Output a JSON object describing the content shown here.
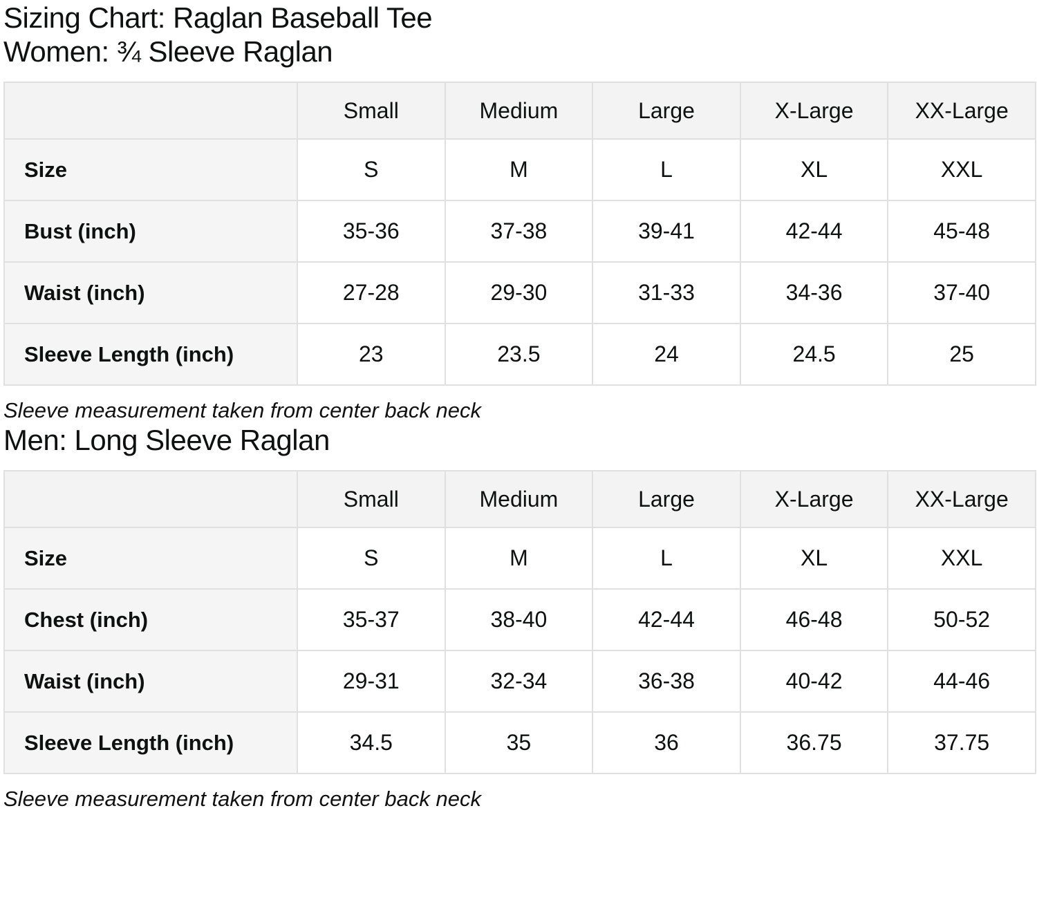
{
  "title": "Sizing Chart: Raglan Baseball Tee",
  "women": {
    "heading": "Women: ¾ Sleeve Raglan",
    "note": "Sleeve measurement taken from center back neck",
    "table": {
      "headers": [
        "",
        "Small",
        "Medium",
        "Large",
        "X-Large",
        "XX-Large"
      ],
      "rows": [
        {
          "label": "Size",
          "values": [
            "S",
            "M",
            "L",
            "XL",
            "XXL"
          ]
        },
        {
          "label": "Bust (inch)",
          "values": [
            "35-36",
            "37-38",
            "39-41",
            "42-44",
            "45-48"
          ]
        },
        {
          "label": "Waist (inch)",
          "values": [
            "27-28",
            "29-30",
            "31-33",
            "34-36",
            "37-40"
          ]
        },
        {
          "label": "Sleeve Length (inch)",
          "values": [
            "23",
            "23.5",
            "24",
            "24.5",
            "25"
          ]
        }
      ]
    }
  },
  "men": {
    "heading": "Men: Long Sleeve Raglan",
    "note": "Sleeve measurement taken from center back neck",
    "table": {
      "headers": [
        "",
        "Small",
        "Medium",
        "Large",
        "X-Large",
        "XX-Large"
      ],
      "rows": [
        {
          "label": "Size",
          "values": [
            "S",
            "M",
            "L",
            "XL",
            "XXL"
          ]
        },
        {
          "label": "Chest (inch)",
          "values": [
            "35-37",
            "38-40",
            "42-44",
            "46-48",
            "50-52"
          ]
        },
        {
          "label": "Waist (inch)",
          "values": [
            "29-31",
            "32-34",
            "36-38",
            "40-42",
            "44-46"
          ]
        },
        {
          "label": "Sleeve Length (inch)",
          "values": [
            "34.5",
            "35",
            "36",
            "36.75",
            "37.75"
          ]
        }
      ]
    }
  },
  "colors": {
    "text": "#0f1111",
    "header_cell_bg": "#f3f3f3",
    "label_cell_bg": "#f5f5f5",
    "data_cell_bg": "#ffffff",
    "border": "#e0e0e0",
    "page_bg": "#ffffff"
  }
}
